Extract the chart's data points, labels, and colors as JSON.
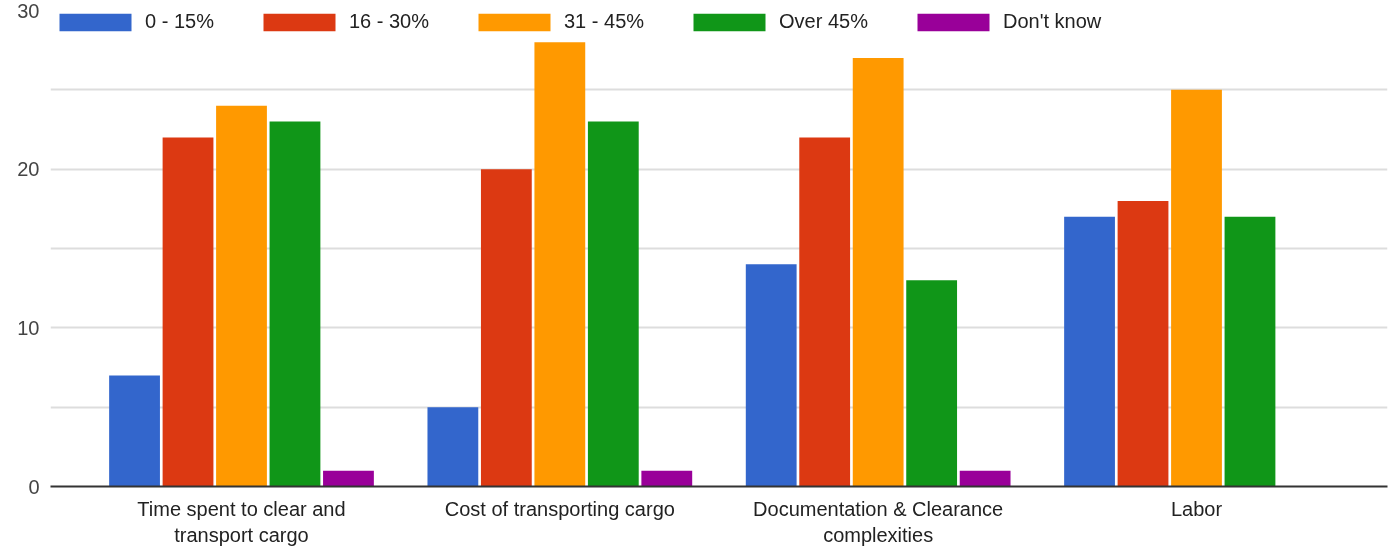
{
  "chart_data": {
    "type": "bar",
    "categories": [
      "Time spent to clear and transport cargo",
      "Cost of transporting cargo",
      "Documentation & Clearance complexities",
      "Labor"
    ],
    "series": [
      {
        "name": "0 - 15%",
        "color": "#3366cc",
        "values": [
          7,
          5,
          14,
          17
        ]
      },
      {
        "name": "16 - 30%",
        "color": "#dc3912",
        "values": [
          22,
          20,
          22,
          18
        ]
      },
      {
        "name": "31 - 45%",
        "color": "#ff9900",
        "values": [
          24,
          28,
          27,
          25
        ]
      },
      {
        "name": "Over 45%",
        "color": "#109618",
        "values": [
          23,
          23,
          13,
          17
        ]
      },
      {
        "name": "Don't know",
        "color": "#990099",
        "values": [
          1,
          1,
          1,
          0
        ]
      }
    ],
    "ylim": [
      0,
      30
    ],
    "yticks": [
      0,
      {
        "value": 5,
        "label": null
      },
      10,
      {
        "value": 15,
        "label": null
      },
      20,
      {
        "value": 25,
        "label": null
      },
      30
    ],
    "grid": "y",
    "legend": "top left"
  }
}
